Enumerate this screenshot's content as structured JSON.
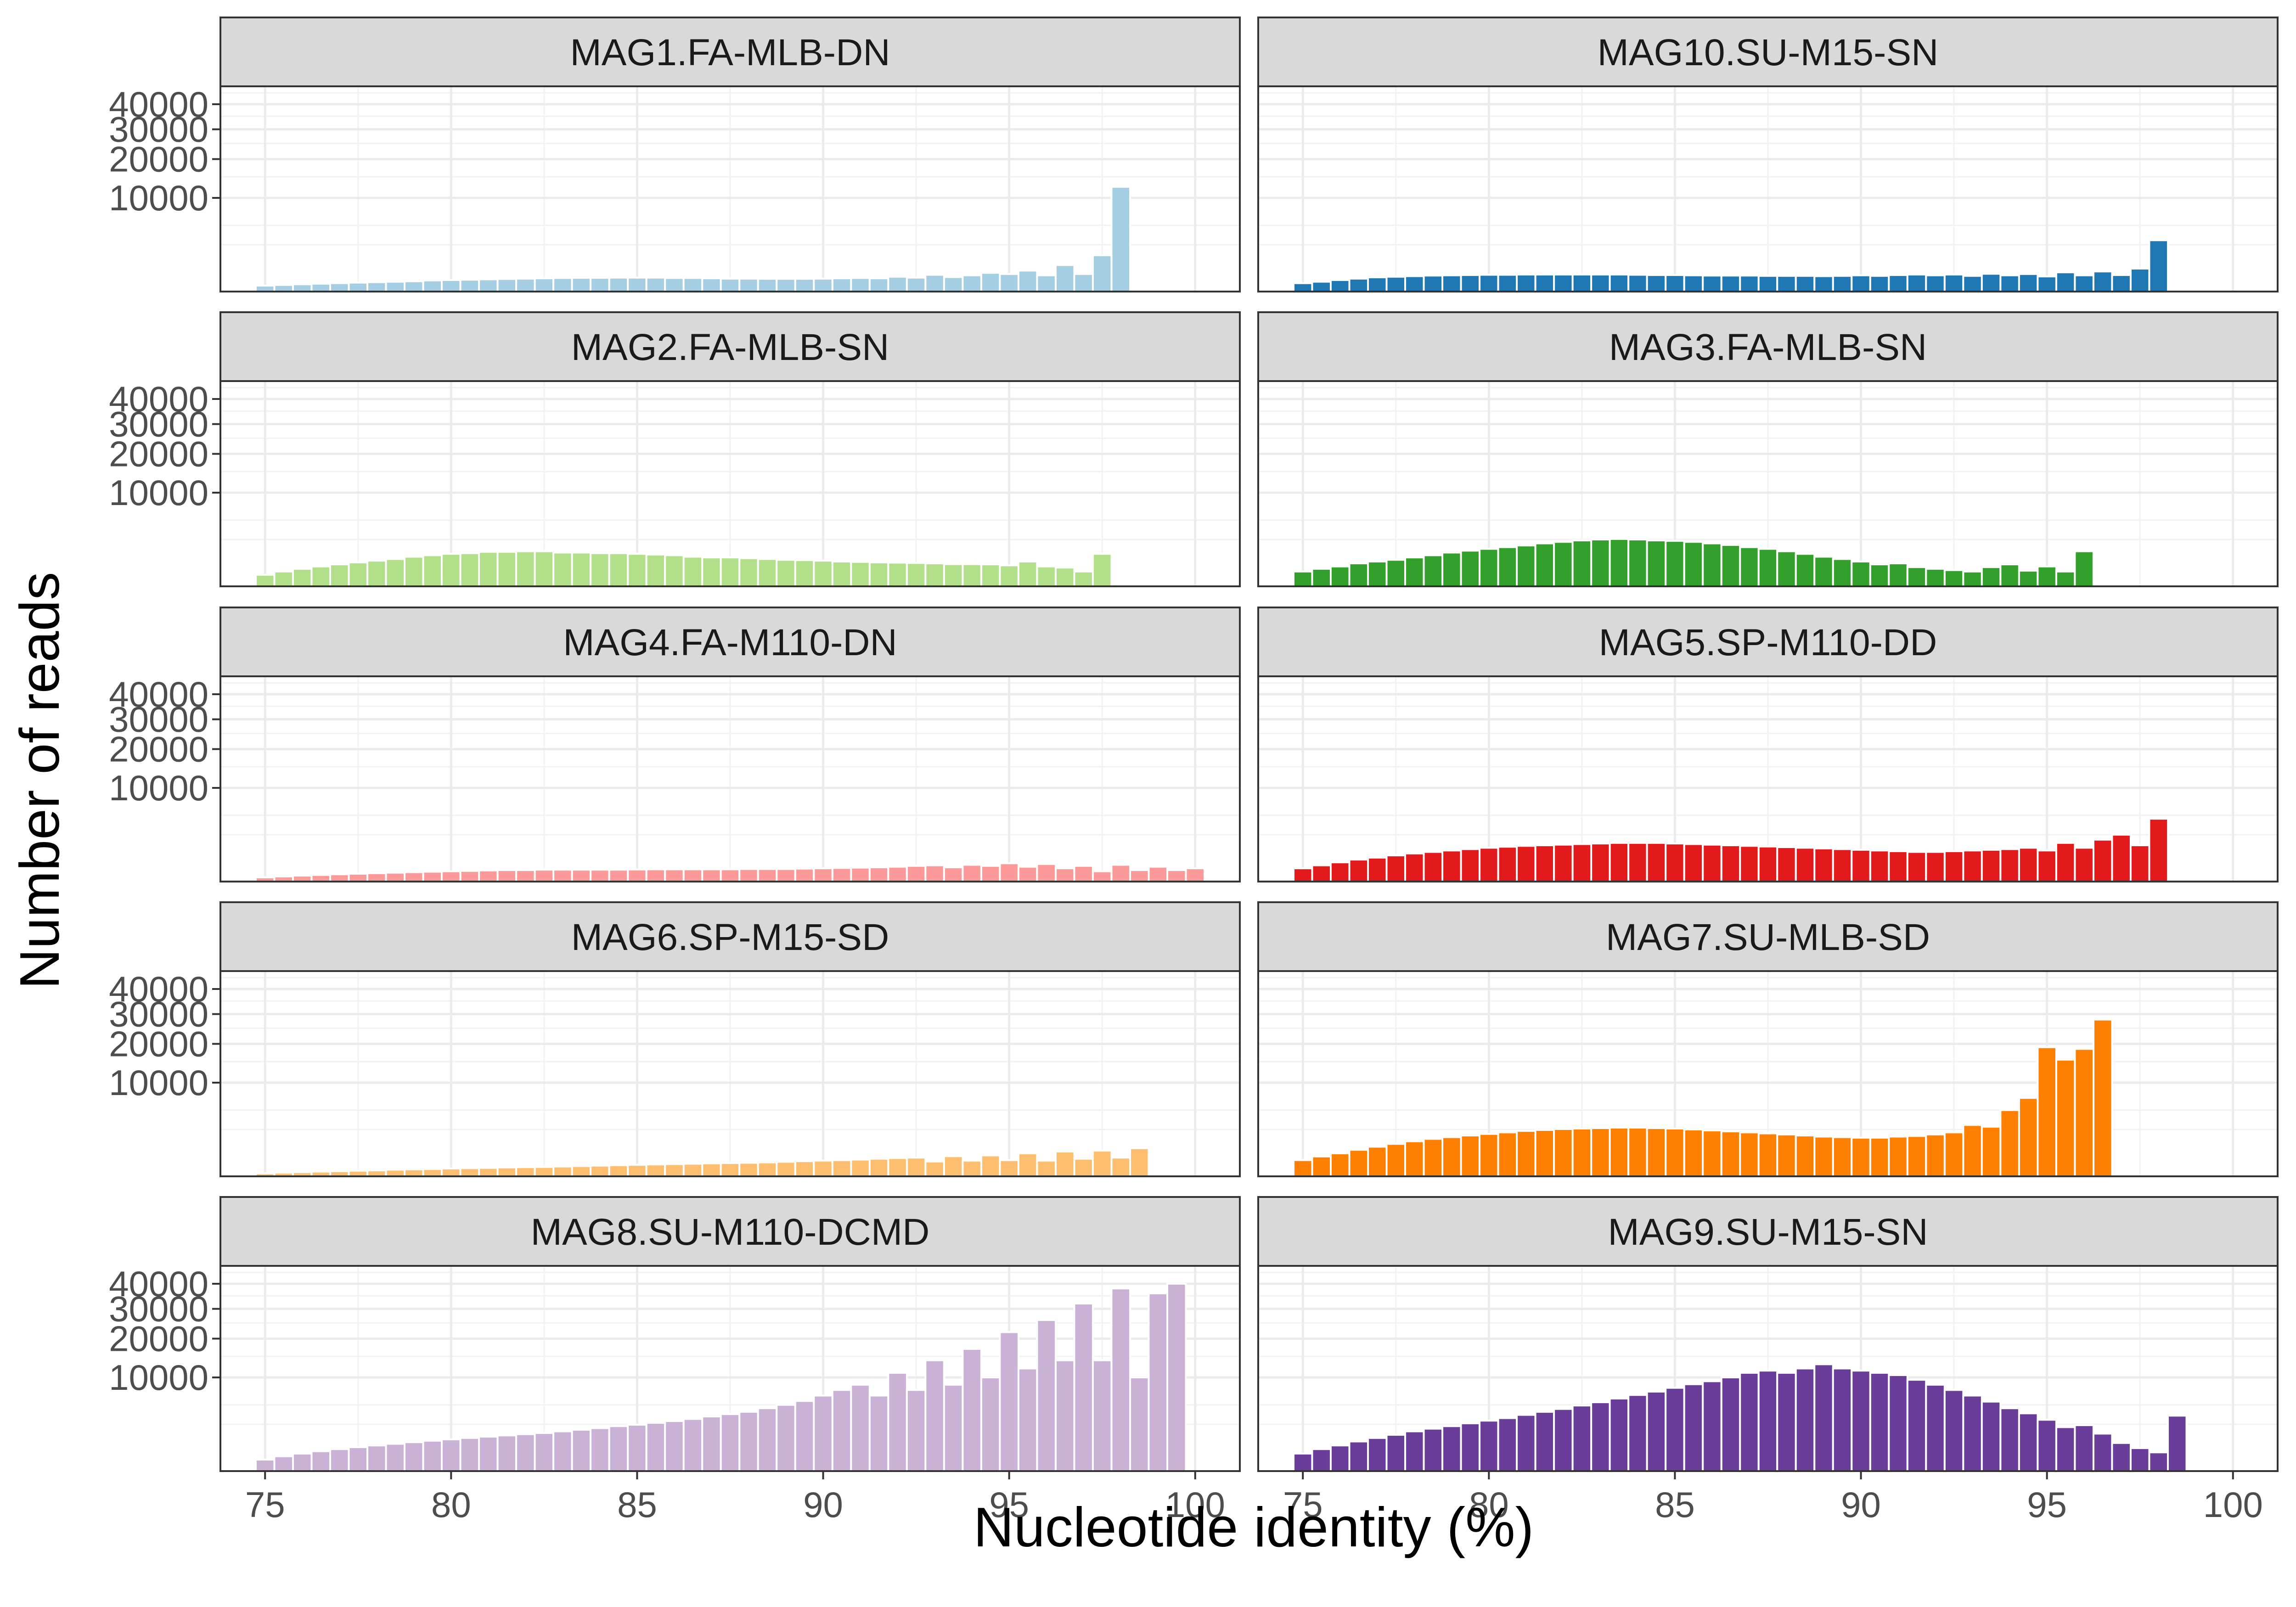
{
  "chart_data": {
    "type": "bar",
    "layout": "facet-grid",
    "xlabel": "Nucleotide identity (%)",
    "ylabel": "Number of reads",
    "x_ticks": [
      75,
      80,
      85,
      90,
      95,
      100
    ],
    "y_ticks": [
      10000,
      20000,
      30000,
      40000
    ],
    "xlim": [
      73.8,
      101.2
    ],
    "bin_start": 75,
    "bin_width": 0.5,
    "grid": true,
    "legend": "none",
    "panels": [
      {
        "name": "MAG1.FA-MLB-DN",
        "color": "#A6CEE3",
        "values": [
          40,
          50,
          60,
          70,
          80,
          90,
          100,
          110,
          120,
          140,
          150,
          160,
          170,
          180,
          190,
          200,
          210,
          215,
          215,
          220,
          220,
          220,
          210,
          210,
          200,
          190,
          190,
          185,
          185,
          185,
          190,
          200,
          210,
          200,
          250,
          220,
          320,
          240,
          300,
          400,
          350,
          500,
          300,
          800,
          350,
          1500,
          12500
        ]
      },
      {
        "name": "MAG10.SU-M15-SN",
        "color": "#1F78B4",
        "values": [
          80,
          110,
          150,
          190,
          230,
          250,
          270,
          290,
          300,
          310,
          320,
          320,
          330,
          330,
          330,
          330,
          330,
          330,
          320,
          310,
          310,
          300,
          290,
          290,
          290,
          280,
          280,
          280,
          270,
          280,
          300,
          280,
          310,
          330,
          300,
          330,
          280,
          360,
          300,
          350,
          260,
          420,
          300,
          460,
          310,
          600,
          3000
        ]
      },
      {
        "name": "MAG2.FA-MLB-SN",
        "color": "#B2DF8A",
        "values": [
          150,
          250,
          350,
          450,
          550,
          650,
          750,
          850,
          1000,
          1100,
          1200,
          1250,
          1350,
          1350,
          1400,
          1400,
          1300,
          1300,
          1250,
          1250,
          1200,
          1150,
          1100,
          1000,
          950,
          950,
          900,
          850,
          800,
          780,
          750,
          700,
          680,
          650,
          640,
          620,
          600,
          560,
          560,
          550,
          500,
          700,
          450,
          400,
          250,
          1200
        ]
      },
      {
        "name": "MAG3.FA-MLB-SN",
        "color": "#33A02C",
        "values": [
          250,
          350,
          450,
          600,
          700,
          800,
          950,
          1100,
          1300,
          1450,
          1600,
          1750,
          1900,
          2100,
          2250,
          2400,
          2500,
          2550,
          2500,
          2400,
          2350,
          2250,
          2100,
          1950,
          1750,
          1600,
          1400,
          1200,
          1000,
          850,
          700,
          550,
          600,
          420,
          350,
          300,
          250,
          420,
          550,
          280,
          450,
          250,
          1400
        ]
      },
      {
        "name": "MAG4.FA-M110-DN",
        "color": "#FB9A99",
        "values": [
          20,
          30,
          40,
          50,
          60,
          70,
          80,
          90,
          100,
          110,
          120,
          130,
          140,
          150,
          150,
          160,
          160,
          160,
          160,
          160,
          165,
          170,
          170,
          170,
          170,
          170,
          180,
          180,
          180,
          190,
          200,
          210,
          220,
          230,
          250,
          280,
          300,
          230,
          320,
          280,
          380,
          250,
          350,
          200,
          280,
          120,
          320,
          150,
          250,
          150,
          200
        ]
      },
      {
        "name": "MAG5.SP-M110-DD",
        "color": "#E31A1C",
        "values": [
          200,
          300,
          420,
          550,
          650,
          780,
          900,
          1000,
          1100,
          1200,
          1300,
          1380,
          1450,
          1500,
          1550,
          1600,
          1650,
          1700,
          1700,
          1700,
          1650,
          1600,
          1550,
          1500,
          1450,
          1400,
          1350,
          1300,
          1250,
          1200,
          1150,
          1100,
          1050,
          1000,
          1000,
          1050,
          1100,
          1150,
          1200,
          1300,
          1100,
          1700,
          1300,
          2000,
          2500,
          1500,
          4500
        ]
      },
      {
        "name": "MAG6.SP-M15-SD",
        "color": "#FDBF6F",
        "values": [
          10,
          15,
          20,
          25,
          30,
          35,
          40,
          50,
          55,
          60,
          70,
          75,
          80,
          90,
          95,
          100,
          110,
          120,
          130,
          140,
          150,
          160,
          170,
          180,
          190,
          200,
          210,
          220,
          240,
          260,
          280,
          300,
          320,
          350,
          380,
          400,
          250,
          460,
          280,
          500,
          300,
          600,
          280,
          700,
          350,
          750,
          400,
          900
        ]
      },
      {
        "name": "MAG7.SU-MLB-SD",
        "color": "#FF7F00",
        "values": [
          300,
          450,
          600,
          800,
          1000,
          1200,
          1400,
          1600,
          1750,
          1900,
          2050,
          2200,
          2350,
          2450,
          2550,
          2600,
          2650,
          2700,
          2700,
          2650,
          2600,
          2500,
          2400,
          2300,
          2200,
          2100,
          2000,
          1900,
          1800,
          1750,
          1700,
          1700,
          1800,
          1850,
          2000,
          2200,
          3000,
          2800,
          5000,
          7000,
          19000,
          15500,
          18500,
          28000
        ]
      },
      {
        "name": "MAG8.SU-M110-DCMD",
        "color": "#CAB2D6",
        "values": [
          150,
          250,
          350,
          450,
          550,
          650,
          750,
          850,
          950,
          1050,
          1150,
          1250,
          1350,
          1450,
          1550,
          1650,
          1800,
          1950,
          2100,
          2300,
          2450,
          2650,
          2850,
          3100,
          3400,
          3700,
          4000,
          4500,
          5000,
          5600,
          6500,
          7500,
          8500,
          6500,
          11000,
          7500,
          14000,
          8500,
          17000,
          10000,
          22000,
          12000,
          26000,
          14000,
          32000,
          14000,
          38000,
          10000,
          36000,
          40000
        ]
      },
      {
        "name": "MAG9.SU-M15-SN",
        "color": "#6A3D9A",
        "values": [
          350,
          550,
          750,
          1000,
          1250,
          1500,
          1800,
          2050,
          2300,
          2600,
          2900,
          3200,
          3600,
          4000,
          4400,
          4900,
          5400,
          6000,
          6600,
          7200,
          7900,
          8600,
          9200,
          10000,
          11000,
          11500,
          11000,
          12000,
          13000,
          12000,
          11500,
          11000,
          10500,
          9500,
          8500,
          7500,
          6500,
          5500,
          4500,
          3800,
          3000,
          2200,
          2400,
          1600,
          900,
          600,
          400,
          3500
        ]
      }
    ]
  }
}
